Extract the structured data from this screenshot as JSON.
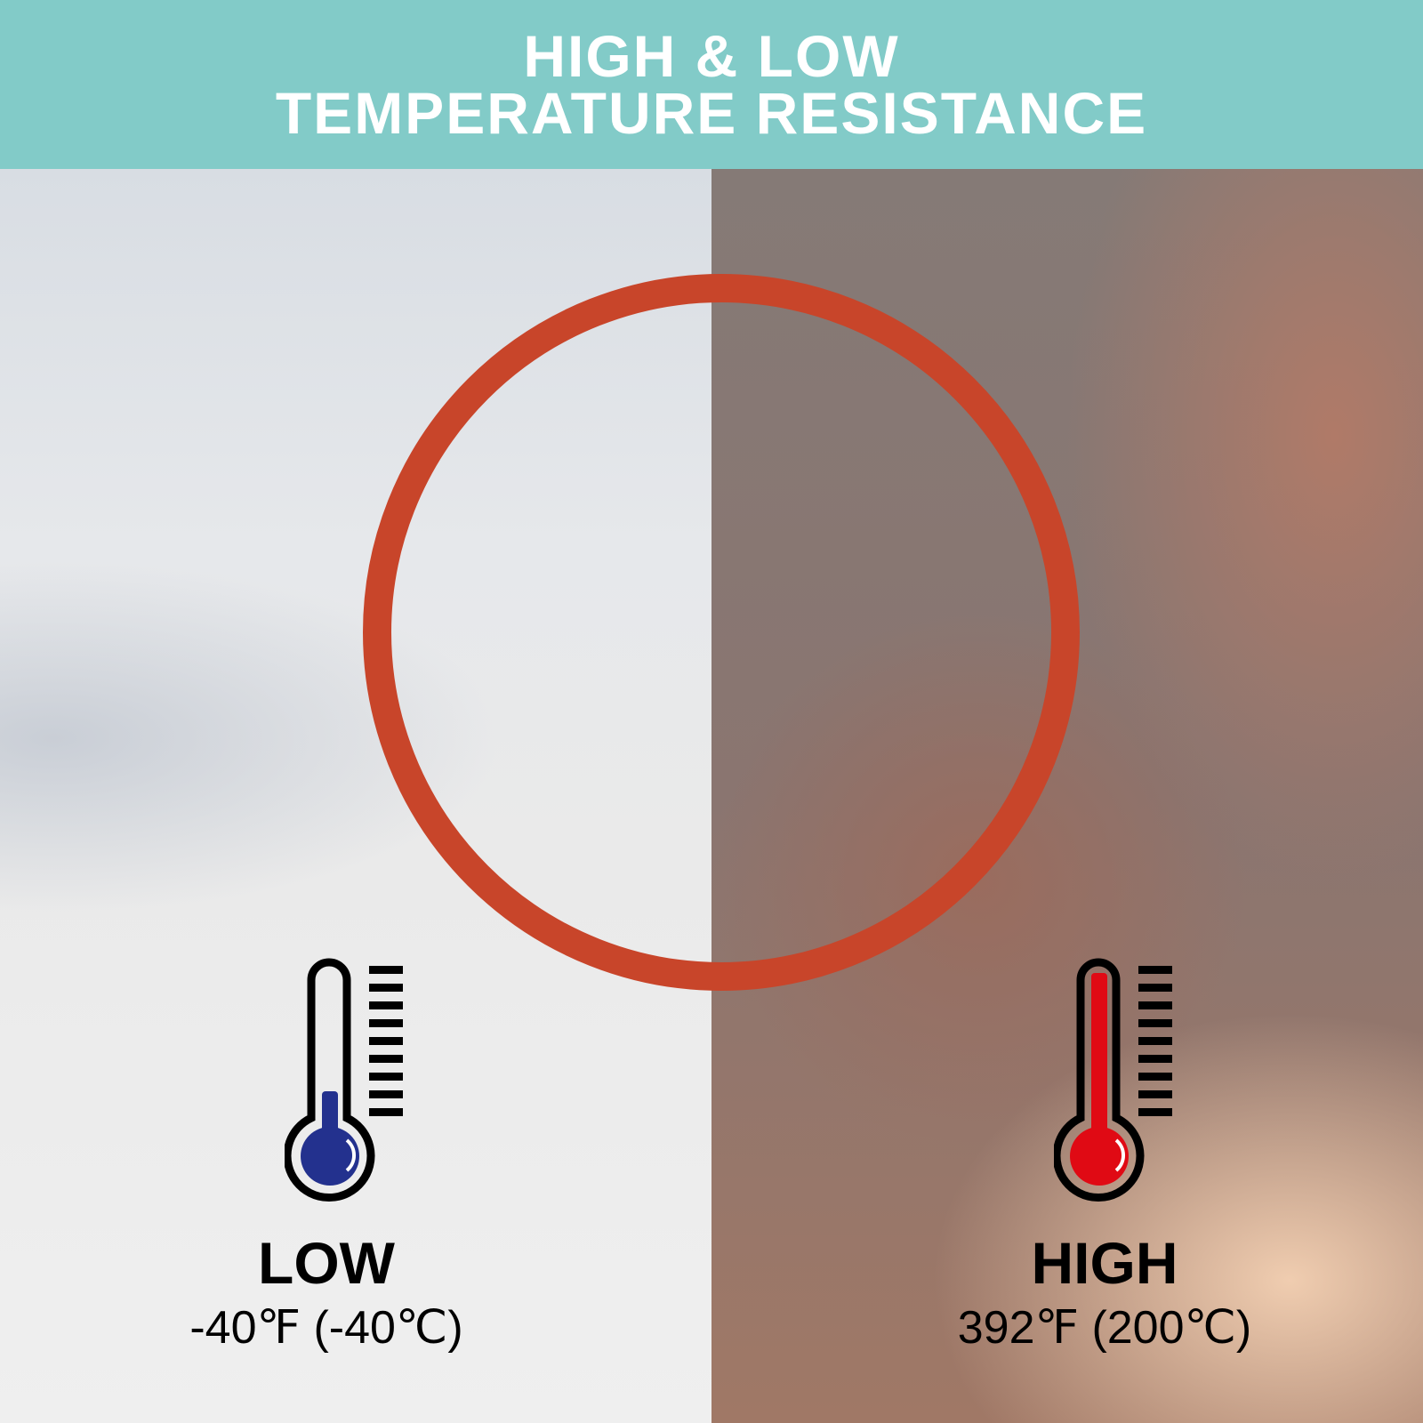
{
  "banner": {
    "line1": "HIGH & LOW",
    "line2": "TEMPERATURE RESISTANCE",
    "color": "#82cbc8"
  },
  "low": {
    "label": "LOW",
    "temp": "-40℉ (-40℃)",
    "icon": "thermometer-cold-icon",
    "color": "#23318e"
  },
  "high": {
    "label": "HIGH",
    "temp": "392℉ (200℃)",
    "icon": "thermometer-hot-icon",
    "color": "#e00a14"
  },
  "product": {
    "ring_color": "#c8452a"
  }
}
